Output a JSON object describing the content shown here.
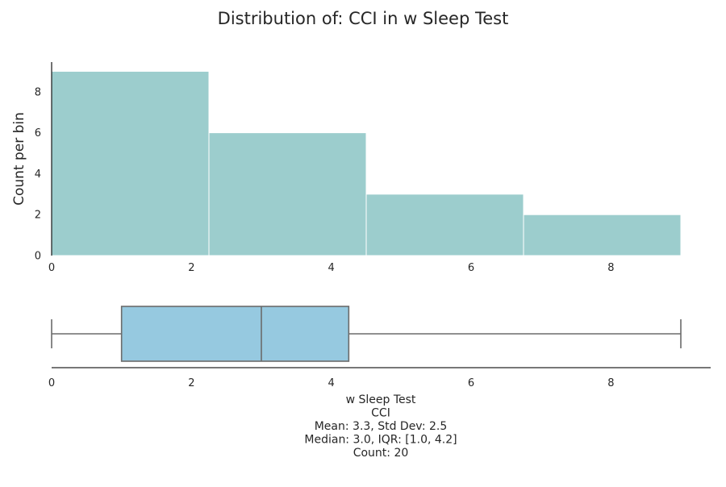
{
  "chart_data": {
    "title": "Distribution of: CCI in w Sleep Test",
    "colors": {
      "histogram_fill": "#9ccdcd",
      "box_fill": "#96c9e0",
      "box_stroke": "#6b6b6b",
      "axis": "#262626"
    },
    "histogram": {
      "type": "bar",
      "ylabel": "Count per bin",
      "xlim": [
        0,
        9
      ],
      "ylim": [
        0,
        9.45
      ],
      "x_ticks": [
        0,
        2,
        4,
        6,
        8
      ],
      "y_ticks": [
        0,
        2,
        4,
        6,
        8
      ],
      "bins": [
        {
          "start": 0,
          "end": 2.25,
          "count": 9
        },
        {
          "start": 2.25,
          "end": 4.5,
          "count": 6
        },
        {
          "start": 4.5,
          "end": 6.75,
          "count": 3
        },
        {
          "start": 6.75,
          "end": 9,
          "count": 2
        }
      ]
    },
    "boxplot": {
      "type": "box",
      "xlim": [
        0,
        9
      ],
      "x_ticks": [
        0,
        2,
        4,
        6,
        8
      ],
      "min": 0,
      "q1": 1.0,
      "median": 3.0,
      "q3": 4.25,
      "max": 9
    },
    "caption_lines": [
      "w Sleep Test",
      "CCI",
      "Mean: 3.3, Std Dev: 2.5",
      "Median: 3.0, IQR: [1.0, 4.2]",
      "Count: 20"
    ]
  }
}
